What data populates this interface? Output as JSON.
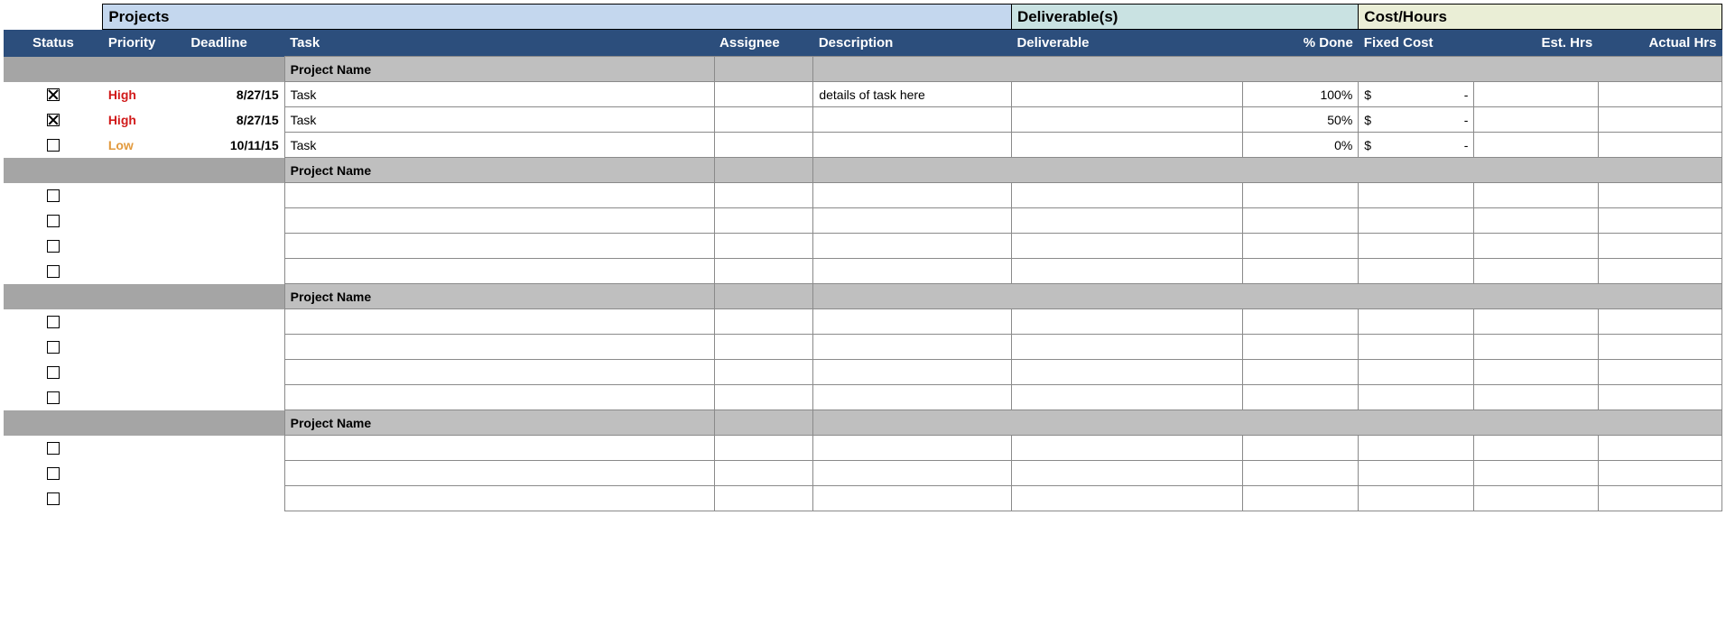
{
  "columns": {
    "widths_pct": [
      6,
      5,
      6,
      26,
      6,
      12,
      14,
      7,
      7,
      7.5,
      7.5
    ],
    "group_headers": {
      "projects": "Projects",
      "deliverables": "Deliverable(s)",
      "cost": "Cost/Hours"
    },
    "headers": [
      "Status",
      "Priority",
      "Deadline",
      "Task",
      "Assignee",
      "Description",
      "Deliverable",
      "% Done",
      "Fixed Cost",
      "Est. Hrs",
      "Actual Hrs"
    ]
  },
  "colors": {
    "group_projects_bg": "#c4d7ee",
    "group_deliv_bg": "#c9e2e2",
    "group_cost_bg": "#eaeed6",
    "header_bg": "#2c4e7c",
    "header_fg": "#ffffff",
    "section_bg": "#bfbfbf",
    "section_pad_bg": "#a5a5a5",
    "cell_border": "#8a8a8a",
    "priority_high": "#d11a1a",
    "priority_low": "#e29a3e"
  },
  "sections": [
    {
      "name": "Project Name",
      "rows": [
        {
          "status": true,
          "priority": "High",
          "deadline": "8/27/15",
          "task": "Task",
          "assignee": "",
          "description": "details of task here",
          "deliverable": "",
          "pct_done": "100%",
          "fixed_cost_sym": "$",
          "fixed_cost_val": "-",
          "est_hrs": "",
          "actual_hrs": ""
        },
        {
          "status": true,
          "priority": "High",
          "deadline": "8/27/15",
          "task": "Task",
          "assignee": "",
          "description": "",
          "deliverable": "",
          "pct_done": "50%",
          "fixed_cost_sym": "$",
          "fixed_cost_val": "-",
          "est_hrs": "",
          "actual_hrs": ""
        },
        {
          "status": false,
          "priority": "Low",
          "deadline": "10/11/15",
          "task": "Task",
          "assignee": "",
          "description": "",
          "deliverable": "",
          "pct_done": "0%",
          "fixed_cost_sym": "$",
          "fixed_cost_val": "-",
          "est_hrs": "",
          "actual_hrs": ""
        }
      ]
    },
    {
      "name": "Project Name",
      "rows": [
        {
          "status": false,
          "priority": "",
          "deadline": "",
          "task": "",
          "assignee": "",
          "description": "",
          "deliverable": "",
          "pct_done": "",
          "fixed_cost_sym": "",
          "fixed_cost_val": "",
          "est_hrs": "",
          "actual_hrs": ""
        },
        {
          "status": false,
          "priority": "",
          "deadline": "",
          "task": "",
          "assignee": "",
          "description": "",
          "deliverable": "",
          "pct_done": "",
          "fixed_cost_sym": "",
          "fixed_cost_val": "",
          "est_hrs": "",
          "actual_hrs": ""
        },
        {
          "status": false,
          "priority": "",
          "deadline": "",
          "task": "",
          "assignee": "",
          "description": "",
          "deliverable": "",
          "pct_done": "",
          "fixed_cost_sym": "",
          "fixed_cost_val": "",
          "est_hrs": "",
          "actual_hrs": ""
        },
        {
          "status": false,
          "priority": "",
          "deadline": "",
          "task": "",
          "assignee": "",
          "description": "",
          "deliverable": "",
          "pct_done": "",
          "fixed_cost_sym": "",
          "fixed_cost_val": "",
          "est_hrs": "",
          "actual_hrs": ""
        }
      ]
    },
    {
      "name": "Project Name",
      "rows": [
        {
          "status": false,
          "priority": "",
          "deadline": "",
          "task": "",
          "assignee": "",
          "description": "",
          "deliverable": "",
          "pct_done": "",
          "fixed_cost_sym": "",
          "fixed_cost_val": "",
          "est_hrs": "",
          "actual_hrs": ""
        },
        {
          "status": false,
          "priority": "",
          "deadline": "",
          "task": "",
          "assignee": "",
          "description": "",
          "deliverable": "",
          "pct_done": "",
          "fixed_cost_sym": "",
          "fixed_cost_val": "",
          "est_hrs": "",
          "actual_hrs": ""
        },
        {
          "status": false,
          "priority": "",
          "deadline": "",
          "task": "",
          "assignee": "",
          "description": "",
          "deliverable": "",
          "pct_done": "",
          "fixed_cost_sym": "",
          "fixed_cost_val": "",
          "est_hrs": "",
          "actual_hrs": ""
        },
        {
          "status": false,
          "priority": "",
          "deadline": "",
          "task": "",
          "assignee": "",
          "description": "",
          "deliverable": "",
          "pct_done": "",
          "fixed_cost_sym": "",
          "fixed_cost_val": "",
          "est_hrs": "",
          "actual_hrs": ""
        }
      ]
    },
    {
      "name": "Project Name",
      "rows": [
        {
          "status": false,
          "priority": "",
          "deadline": "",
          "task": "",
          "assignee": "",
          "description": "",
          "deliverable": "",
          "pct_done": "",
          "fixed_cost_sym": "",
          "fixed_cost_val": "",
          "est_hrs": "",
          "actual_hrs": ""
        },
        {
          "status": false,
          "priority": "",
          "deadline": "",
          "task": "",
          "assignee": "",
          "description": "",
          "deliverable": "",
          "pct_done": "",
          "fixed_cost_sym": "",
          "fixed_cost_val": "",
          "est_hrs": "",
          "actual_hrs": ""
        },
        {
          "status": false,
          "priority": "",
          "deadline": "",
          "task": "",
          "assignee": "",
          "description": "",
          "deliverable": "",
          "pct_done": "",
          "fixed_cost_sym": "",
          "fixed_cost_val": "",
          "est_hrs": "",
          "actual_hrs": ""
        }
      ]
    }
  ]
}
